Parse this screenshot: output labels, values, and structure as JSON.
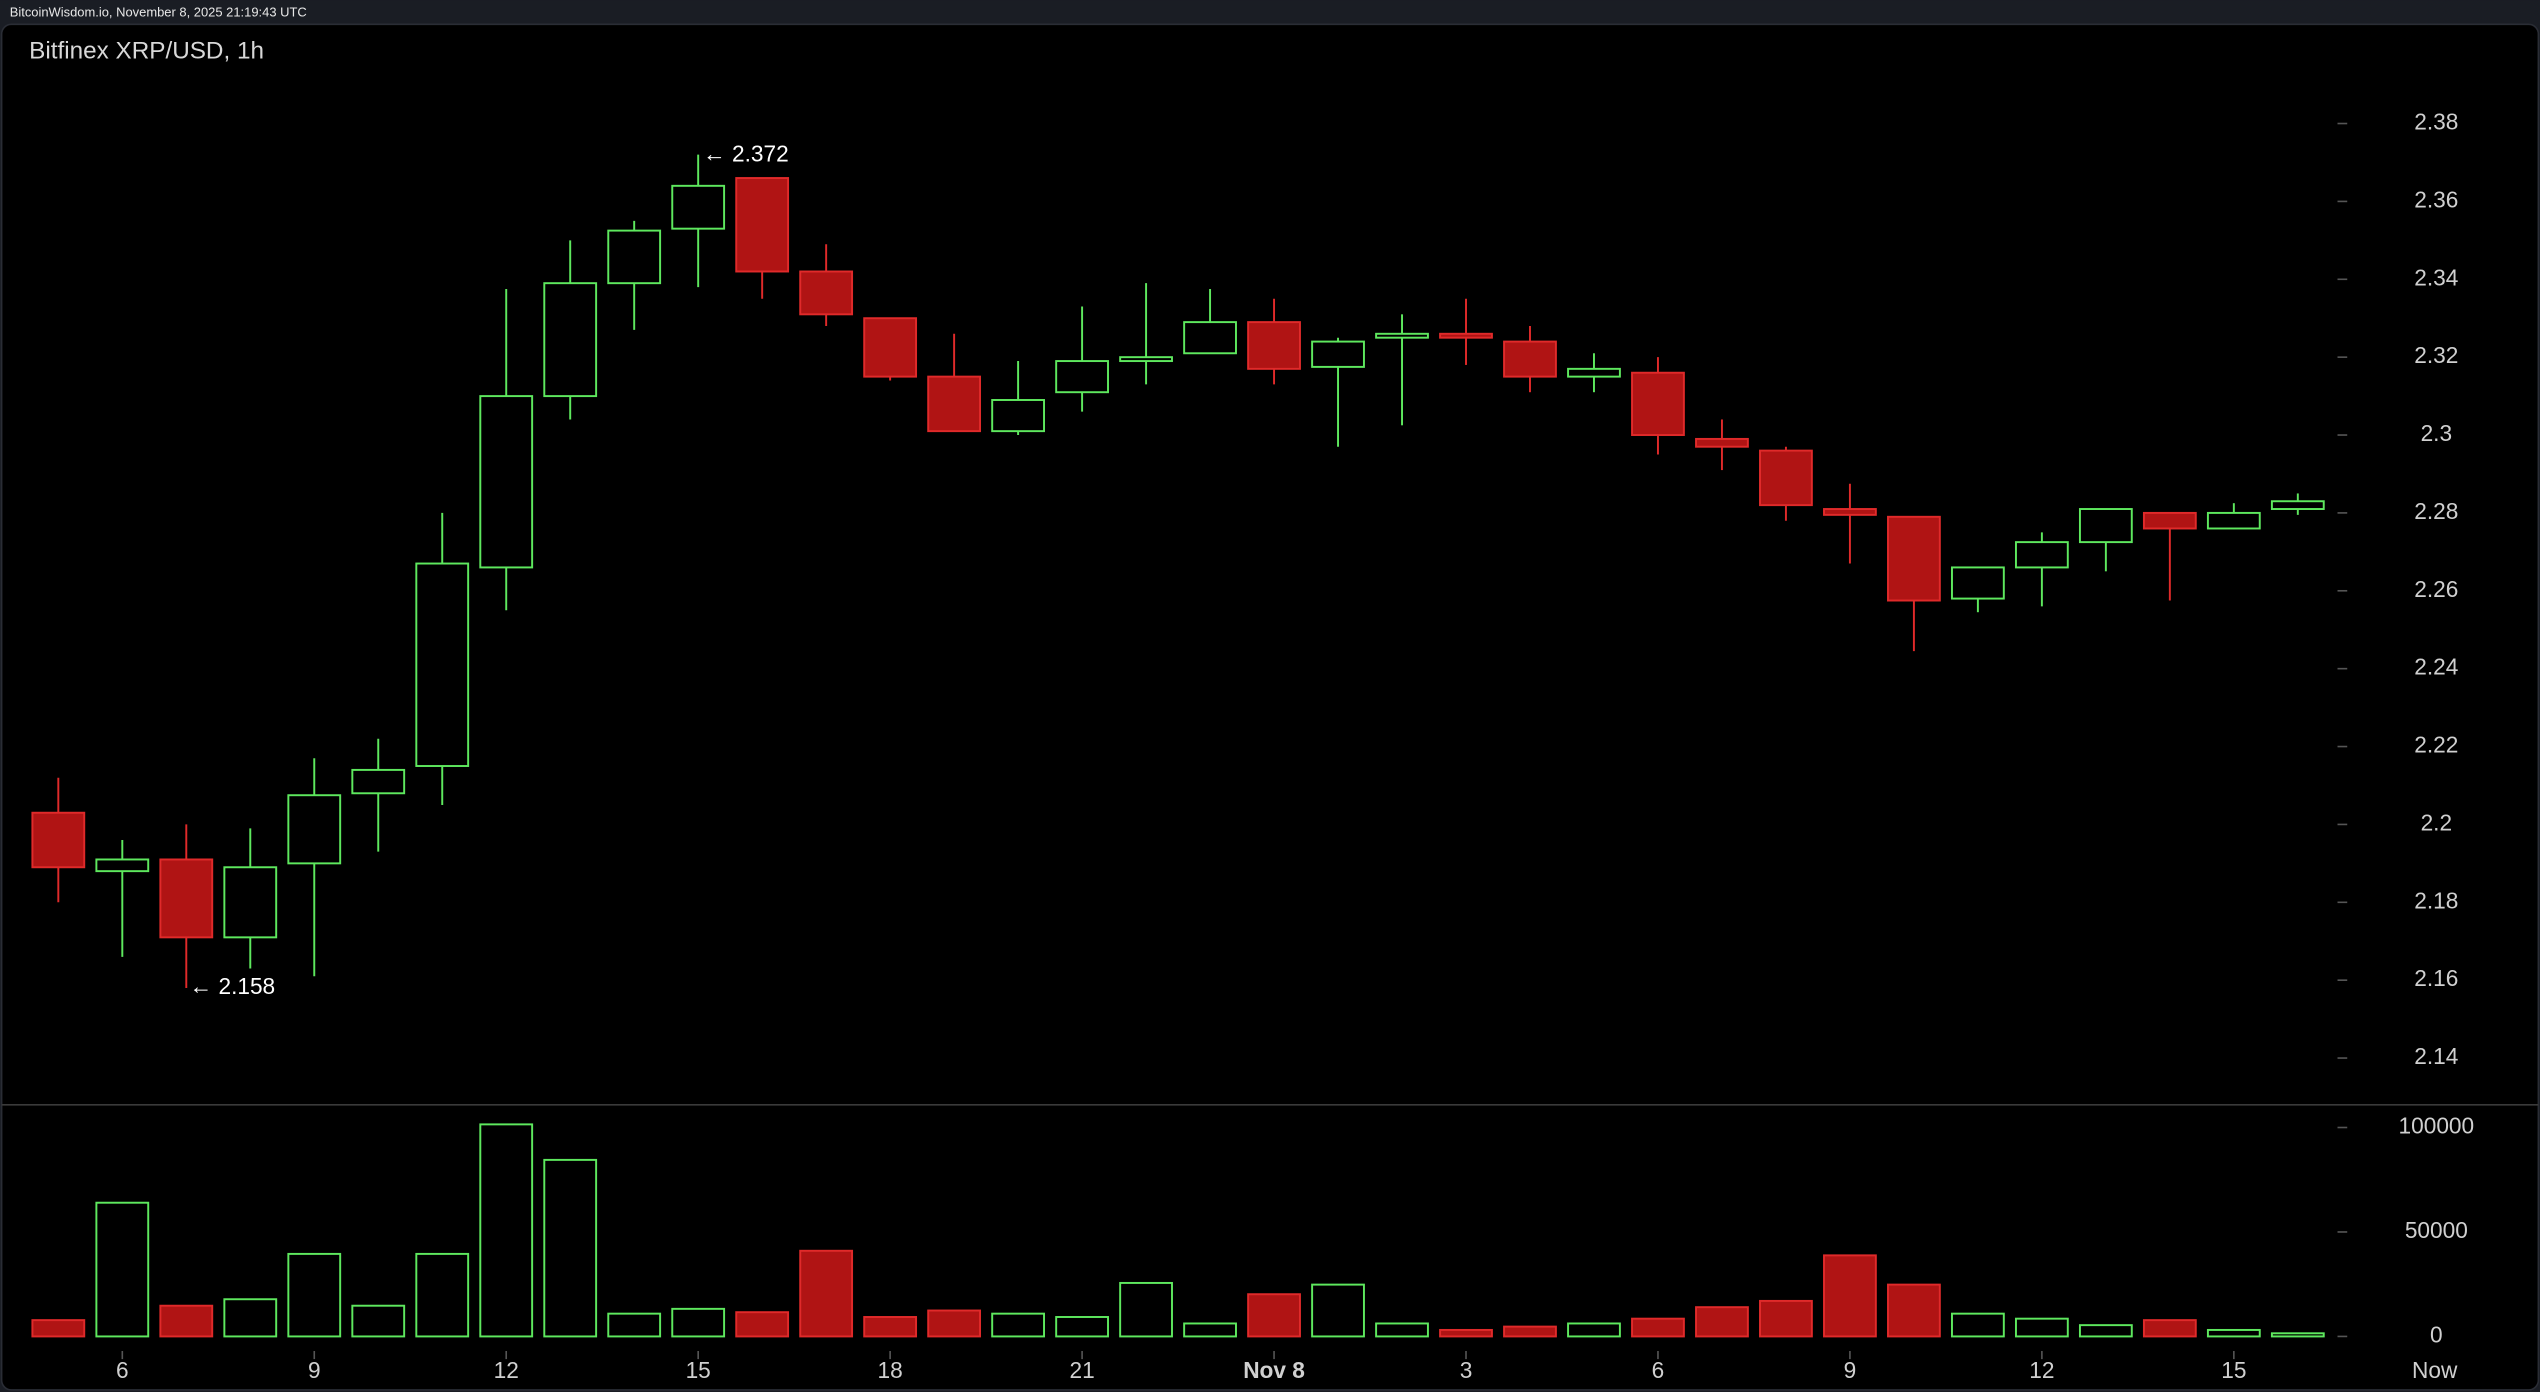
{
  "header": {
    "text": "BitcoinWisdom.io, November 8, 2025 21:19:43 UTC"
  },
  "chart_data": {
    "type": "candlestick",
    "title": "Bitfinex XRP/USD, 1h",
    "categories": [
      null,
      "6",
      null,
      null,
      "9",
      null,
      null,
      "12",
      null,
      null,
      "15",
      null,
      null,
      "18",
      null,
      null,
      "21",
      null,
      null,
      "Nov 8",
      null,
      null,
      "3",
      null,
      null,
      "6",
      null,
      null,
      "9",
      null,
      null,
      "12",
      null,
      null,
      "15",
      null
    ],
    "now_label": "Now",
    "open": [
      2.203,
      2.188,
      2.191,
      2.171,
      2.19,
      2.208,
      2.215,
      2.266,
      2.31,
      2.339,
      2.353,
      2.366,
      2.342,
      2.33,
      2.315,
      2.301,
      2.311,
      2.319,
      2.321,
      2.329,
      2.3175,
      2.325,
      2.326,
      2.324,
      2.315,
      2.316,
      2.299,
      2.296,
      2.281,
      2.279,
      2.258,
      2.266,
      2.2725,
      2.28,
      2.276,
      2.281
    ],
    "high": [
      2.212,
      2.196,
      2.2,
      2.199,
      2.217,
      2.222,
      2.28,
      2.3375,
      2.35,
      2.355,
      2.372,
      2.366,
      2.349,
      2.33,
      2.326,
      2.319,
      2.333,
      2.339,
      2.3375,
      2.335,
      2.325,
      2.331,
      2.335,
      2.328,
      2.321,
      2.32,
      2.304,
      2.297,
      2.2875,
      2.279,
      2.266,
      2.275,
      2.281,
      2.28,
      2.2825,
      2.285
    ],
    "low": [
      2.18,
      2.166,
      2.158,
      2.163,
      2.161,
      2.193,
      2.205,
      2.255,
      2.304,
      2.327,
      2.338,
      2.335,
      2.328,
      2.314,
      2.301,
      2.3,
      2.306,
      2.313,
      2.321,
      2.313,
      2.297,
      2.3025,
      2.318,
      2.311,
      2.311,
      2.295,
      2.291,
      2.278,
      2.267,
      2.2445,
      2.2545,
      2.256,
      2.265,
      2.2575,
      2.276,
      2.2795
    ],
    "close": [
      2.189,
      2.191,
      2.171,
      2.189,
      2.2075,
      2.214,
      2.267,
      2.31,
      2.339,
      2.3525,
      2.364,
      2.342,
      2.331,
      2.315,
      2.301,
      2.309,
      2.319,
      2.32,
      2.329,
      2.317,
      2.324,
      2.326,
      2.325,
      2.315,
      2.317,
      2.3,
      2.297,
      2.282,
      2.2795,
      2.2575,
      2.266,
      2.2725,
      2.281,
      2.276,
      2.28,
      2.283
    ],
    "volume": [
      7800,
      64000,
      14700,
      17800,
      39500,
      14700,
      39500,
      101500,
      84500,
      10900,
      13200,
      11600,
      41000,
      9300,
      12400,
      10900,
      9300,
      25600,
      6200,
      20200,
      24800,
      6200,
      3100,
      4700,
      6200,
      8500,
      14000,
      17000,
      38800,
      24800,
      10900,
      8500,
      5400,
      7800,
      3100,
      1500
    ],
    "up_color": "#5ee85e",
    "down_color": "#b01414",
    "down_stroke": "#e02a2a",
    "ylim": [
      2.128,
      2.393
    ],
    "yticks": [
      2.14,
      2.16,
      2.18,
      2.2,
      2.22,
      2.24,
      2.26,
      2.28,
      2.3,
      2.32,
      2.34,
      2.36,
      2.38
    ],
    "volume_ylim": [
      0,
      107000
    ],
    "volume_yticks": [
      0,
      50000,
      100000
    ],
    "annotations": [
      {
        "text": "← 2.372"
      },
      {
        "text": "← 2.158"
      }
    ]
  }
}
